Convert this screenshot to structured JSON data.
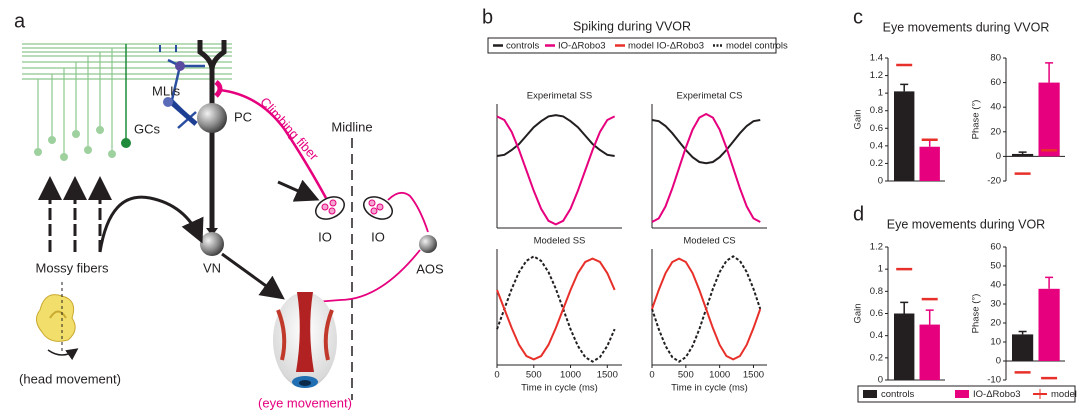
{
  "diagram": {
    "letter": "a",
    "midline": "Midline",
    "mlis": "MLIs",
    "gcs": "GCs",
    "pc": "PC",
    "climbing_fiber": "Climbing fiber",
    "io_left": "IO",
    "io_right": "IO",
    "vn": "VN",
    "mossy_fibers": "Mossy fibers",
    "aos": "AOS",
    "head_movement": "(head movement)",
    "eye_movement": "(eye movement)"
  },
  "panel_b": {
    "letter": "b",
    "title": "Spiking during VVOR",
    "legend": [
      {
        "name": "controls",
        "color": "#231f20",
        "dashed": false
      },
      {
        "name": "IO-ΔRobo3",
        "color": "#e6007e",
        "dashed": false
      },
      {
        "name": "model IO-ΔRobo3",
        "color": "#e8302a",
        "dashed": false
      },
      {
        "name": "model controls",
        "color": "#231f20",
        "dashed": true
      }
    ]
  },
  "panel_c": {
    "letter": "c",
    "title": "Eye movements during VVOR"
  },
  "panel_d": {
    "letter": "d",
    "title": "Eye movements during VOR",
    "legend": [
      {
        "name": "controls",
        "color": "#231f20",
        "kind": "bar"
      },
      {
        "name": "IO-ΔRobo3",
        "color": "#e6007e",
        "kind": "bar"
      },
      {
        "name": "model",
        "color": "#e8302a",
        "kind": "marker"
      }
    ]
  },
  "chart_data": [
    {
      "type": "line",
      "title": "Experimetal SS",
      "x": [
        0,
        100,
        200,
        300,
        400,
        500,
        600,
        700,
        800,
        900,
        1000,
        1100,
        1200,
        1300,
        1400,
        1500,
        1600
      ],
      "xlim": [
        0,
        1700
      ],
      "ylim": [
        0,
        1
      ],
      "series": [
        {
          "color": "#231f20",
          "dashed": false,
          "values": [
            0.6,
            0.61,
            0.65,
            0.7,
            0.77,
            0.84,
            0.89,
            0.93,
            0.94,
            0.93,
            0.89,
            0.84,
            0.77,
            0.7,
            0.65,
            0.61,
            0.6
          ]
        },
        {
          "color": "#e6007e",
          "dashed": false,
          "values": [
            0.93,
            0.9,
            0.8,
            0.65,
            0.48,
            0.31,
            0.16,
            0.06,
            0.03,
            0.06,
            0.16,
            0.31,
            0.48,
            0.65,
            0.8,
            0.9,
            0.93
          ]
        }
      ]
    },
    {
      "type": "line",
      "title": "Experimetal CS",
      "x": [
        0,
        100,
        200,
        300,
        400,
        500,
        600,
        700,
        800,
        900,
        1000,
        1100,
        1200,
        1300,
        1400,
        1500,
        1600
      ],
      "xlim": [
        0,
        1700
      ],
      "ylim": [
        0,
        1
      ],
      "series": [
        {
          "color": "#231f20",
          "dashed": false,
          "values": [
            0.9,
            0.89,
            0.85,
            0.79,
            0.72,
            0.65,
            0.59,
            0.55,
            0.54,
            0.55,
            0.59,
            0.65,
            0.72,
            0.79,
            0.85,
            0.89,
            0.9
          ]
        },
        {
          "color": "#e6007e",
          "dashed": false,
          "values": [
            0.05,
            0.08,
            0.18,
            0.33,
            0.5,
            0.67,
            0.82,
            0.92,
            0.95,
            0.92,
            0.82,
            0.67,
            0.5,
            0.33,
            0.18,
            0.08,
            0.05
          ]
        }
      ]
    },
    {
      "type": "line",
      "title": "Modeled SS",
      "x": [
        0,
        100,
        200,
        300,
        400,
        500,
        600,
        700,
        800,
        900,
        1000,
        1100,
        1200,
        1300,
        1400,
        1500,
        1600
      ],
      "xlim": [
        0,
        1700
      ],
      "ylim": [
        0,
        1
      ],
      "xticks": [
        0,
        500,
        1000,
        1500
      ],
      "x_label": "Time in cycle (ms)",
      "series": [
        {
          "color": "#231f20",
          "dashed": true,
          "values": [
            0.32,
            0.5,
            0.68,
            0.83,
            0.93,
            0.97,
            0.93,
            0.83,
            0.68,
            0.5,
            0.32,
            0.17,
            0.07,
            0.03,
            0.07,
            0.17,
            0.32
          ]
        },
        {
          "color": "#e8302a",
          "dashed": false,
          "values": [
            0.67,
            0.5,
            0.33,
            0.18,
            0.08,
            0.05,
            0.08,
            0.18,
            0.33,
            0.5,
            0.67,
            0.82,
            0.92,
            0.95,
            0.92,
            0.82,
            0.67
          ]
        }
      ]
    },
    {
      "type": "line",
      "title": "Modeled CS",
      "x": [
        0,
        100,
        200,
        300,
        400,
        500,
        600,
        700,
        800,
        900,
        1000,
        1100,
        1200,
        1300,
        1400,
        1500,
        1600
      ],
      "xlim": [
        0,
        1700
      ],
      "ylim": [
        0,
        1
      ],
      "xticks": [
        0,
        500,
        1000,
        1500
      ],
      "x_label": "Time in cycle (ms)",
      "series": [
        {
          "color": "#231f20",
          "dashed": true,
          "values": [
            0.5,
            0.32,
            0.17,
            0.07,
            0.03,
            0.07,
            0.17,
            0.32,
            0.5,
            0.68,
            0.83,
            0.93,
            0.97,
            0.93,
            0.83,
            0.68,
            0.5
          ]
        },
        {
          "color": "#e8302a",
          "dashed": false,
          "values": [
            0.5,
            0.67,
            0.82,
            0.92,
            0.95,
            0.92,
            0.82,
            0.67,
            0.5,
            0.33,
            0.18,
            0.08,
            0.05,
            0.08,
            0.18,
            0.33,
            0.5
          ]
        }
      ]
    },
    {
      "type": "bar",
      "y_label": "Gain",
      "ylim": [
        0,
        1.4
      ],
      "yticks": [
        0,
        0.2,
        0.4,
        0.6,
        0.8,
        1,
        1.2,
        1.4
      ],
      "values": [
        1.02,
        0.39
      ],
      "errors": [
        0.08,
        0.08
      ],
      "colors": [
        "#231f20",
        "#e6007e"
      ],
      "model_values": [
        1.32,
        0.47
      ],
      "model_color": "#e8302a"
    },
    {
      "type": "bar",
      "y_label": "Phase (°)",
      "ylim": [
        -20,
        80
      ],
      "yticks": [
        -20,
        0,
        20,
        40,
        60,
        80
      ],
      "values": [
        2,
        60
      ],
      "errors": [
        1.5,
        16
      ],
      "colors": [
        "#231f20",
        "#e6007e"
      ],
      "model_values": [
        -14,
        5
      ],
      "model_color": "#e8302a"
    },
    {
      "type": "bar",
      "y_label": "Gain",
      "ylim": [
        0,
        1.2
      ],
      "yticks": [
        0,
        0.2,
        0.4,
        0.6,
        0.8,
        1,
        1.2
      ],
      "values": [
        0.6,
        0.5
      ],
      "errors": [
        0.1,
        0.13
      ],
      "colors": [
        "#231f20",
        "#e6007e"
      ],
      "model_values": [
        1.0,
        0.73
      ],
      "model_color": "#e8302a"
    },
    {
      "type": "bar",
      "y_label": "Phase (°)",
      "ylim": [
        -10,
        60
      ],
      "yticks": [
        -10,
        0,
        10,
        20,
        30,
        40,
        50,
        60
      ],
      "values": [
        14,
        38
      ],
      "errors": [
        1.5,
        6
      ],
      "colors": [
        "#231f20",
        "#e6007e"
      ],
      "model_values": [
        -6,
        -9
      ],
      "model_color": "#e8302a"
    }
  ]
}
